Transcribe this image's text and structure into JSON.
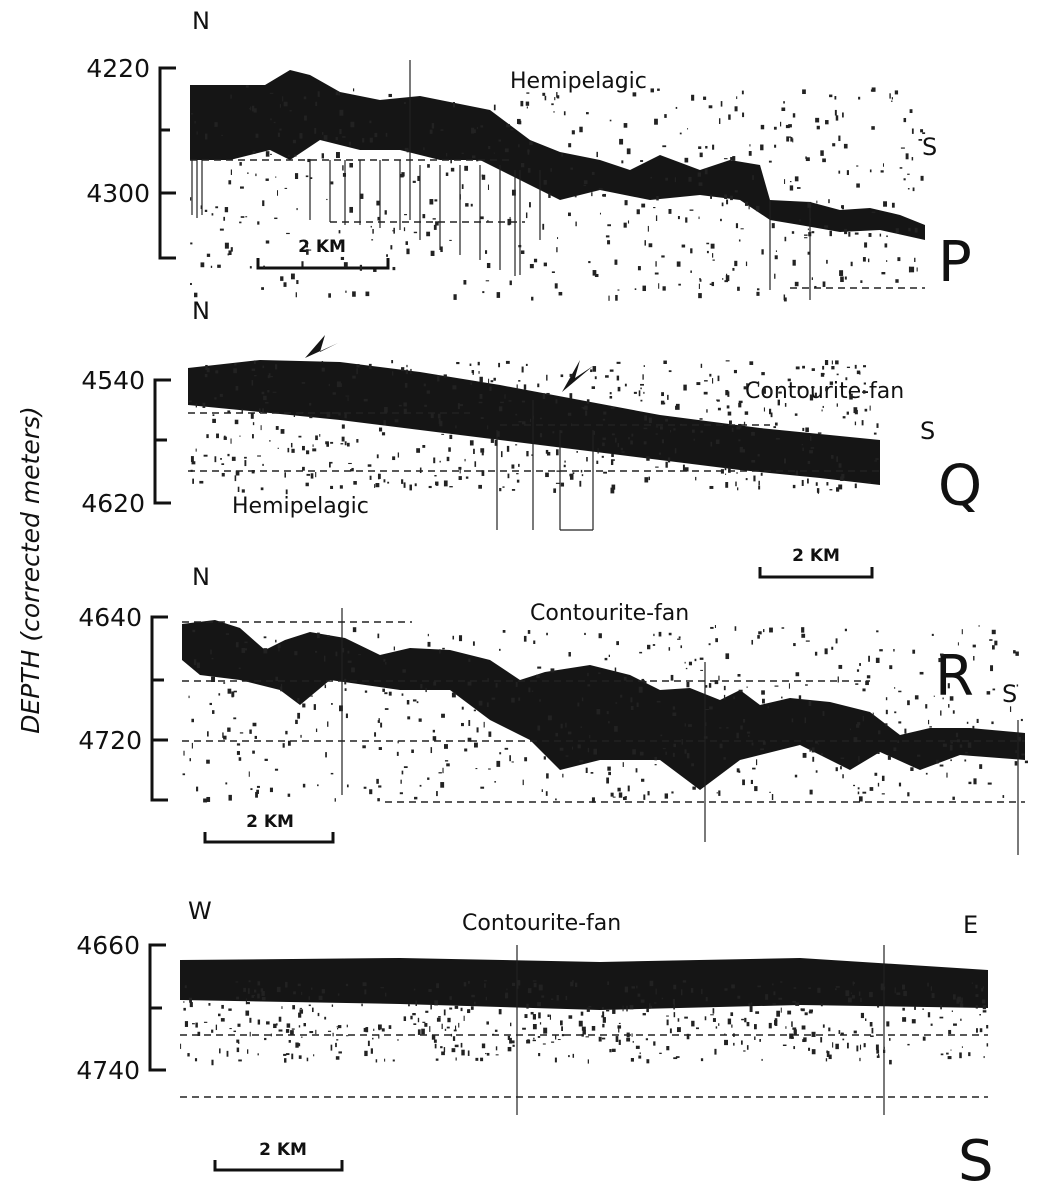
{
  "axis_label": "DEPTH (corrected meters)",
  "panels": [
    {
      "letter": "P",
      "directions": [
        "N",
        "S"
      ],
      "depth_ticks": [
        4220,
        4300
      ],
      "annotations": [
        "Hemipelagic"
      ],
      "scale": "2 KM"
    },
    {
      "letter": "Q",
      "directions": [
        "N",
        "S"
      ],
      "depth_ticks": [
        4540,
        4620
      ],
      "annotations": [
        "Contourite-fan",
        "Hemipelagic"
      ],
      "scale": "2 KM"
    },
    {
      "letter": "R",
      "directions": [
        "N",
        "S"
      ],
      "depth_ticks": [
        4640,
        4720
      ],
      "annotations": [
        "Contourite-fan"
      ],
      "scale": "2 KM"
    },
    {
      "letter": "S",
      "directions": [
        "W",
        "E"
      ],
      "depth_ticks": [
        4660,
        4740
      ],
      "annotations": [
        "Contourite-fan"
      ],
      "scale": "2 KM"
    }
  ]
}
